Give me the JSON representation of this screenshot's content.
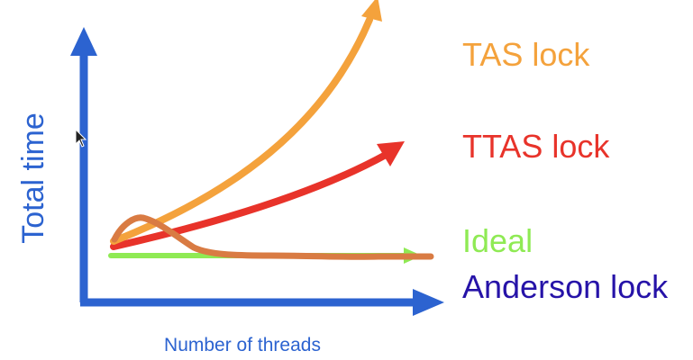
{
  "chart_data": {
    "type": "line",
    "xlabel": "Number of threads",
    "ylabel": "Total time",
    "grid": false,
    "legend": "right",
    "series": [
      {
        "name": "TAS lock",
        "color": "#F4A23C"
      },
      {
        "name": "TTAS lock",
        "color": "#E8332A"
      },
      {
        "name": "Ideal",
        "color": "#8FEA54"
      },
      {
        "name": "Anderson lock",
        "color": "#D97B43",
        "label_color": "#2613A8"
      }
    ]
  },
  "colors": {
    "axis": "#2C63D0"
  }
}
